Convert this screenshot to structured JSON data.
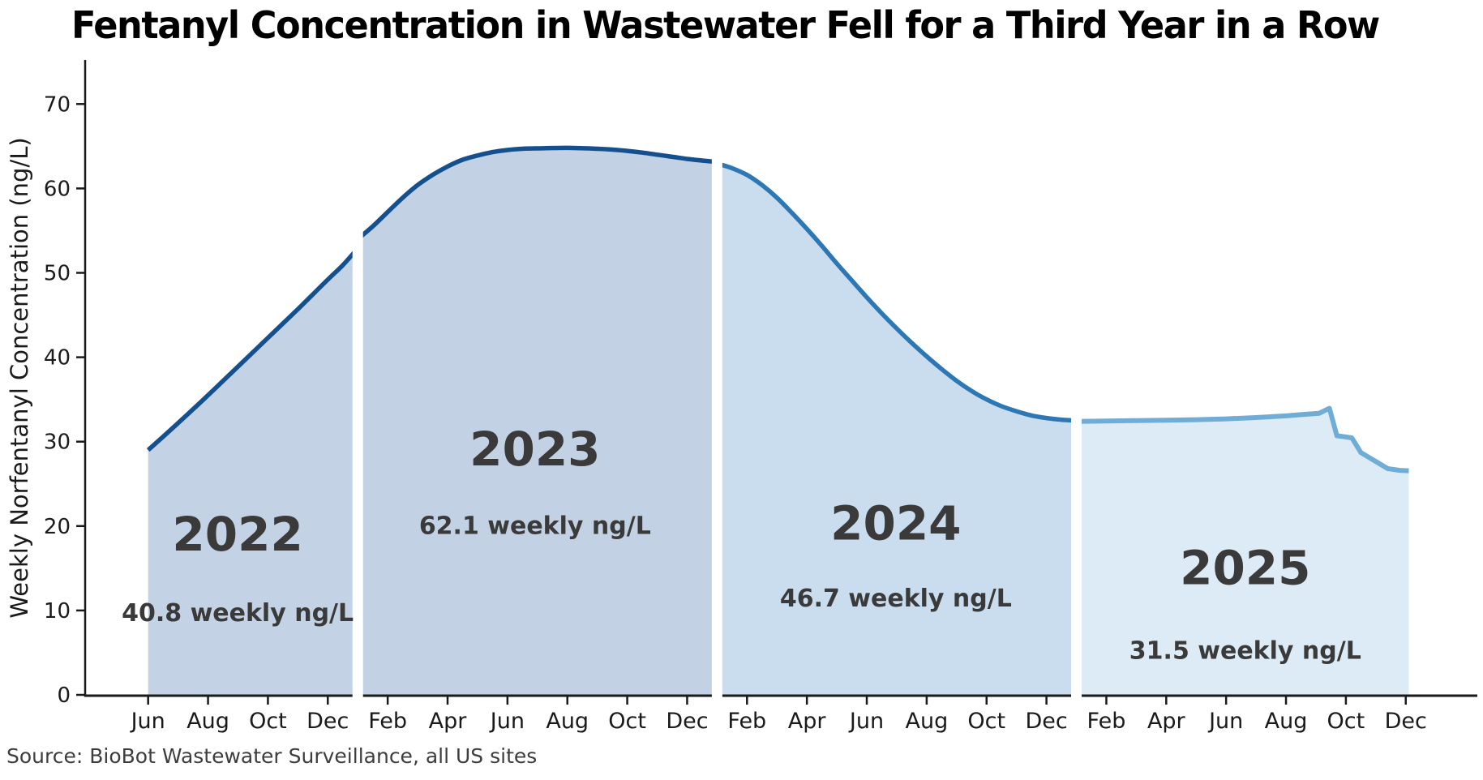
{
  "header": {
    "title": "Fentanyl Concentration in Wastewater Fell for a Third Year in a Row"
  },
  "footer": {
    "source": "Source: BioBot Wastewater Surveillance, all US sites"
  },
  "chart_data": {
    "type": "area",
    "title": "Fentanyl Concentration in Wastewater Fell for a Third Year in a Row",
    "xlabel": "",
    "ylabel": "Weekly Norfentanyl Concentration (ng/L)",
    "x_unit": "months since Jan 2022 (fractional)",
    "xlim": [
      2.9,
      49.3
    ],
    "ylim": [
      0,
      75.2
    ],
    "grid": false,
    "legend": "none",
    "axis_color": "#1a1a1a",
    "tick_color": "#1a1a1a",
    "annotation_color": "#3a3a3a",
    "y_ticks": [
      0,
      10,
      20,
      30,
      40,
      50,
      60,
      70
    ],
    "x_ticks": [
      {
        "m": 5,
        "label": "Jun"
      },
      {
        "m": 7,
        "label": "Aug"
      },
      {
        "m": 9,
        "label": "Oct"
      },
      {
        "m": 11,
        "label": "Dec"
      },
      {
        "m": 13,
        "label": "Feb"
      },
      {
        "m": 15,
        "label": "Apr"
      },
      {
        "m": 17,
        "label": "Jun"
      },
      {
        "m": 19,
        "label": "Aug"
      },
      {
        "m": 21,
        "label": "Oct"
      },
      {
        "m": 23,
        "label": "Dec"
      },
      {
        "m": 25,
        "label": "Feb"
      },
      {
        "m": 27,
        "label": "Apr"
      },
      {
        "m": 29,
        "label": "Jun"
      },
      {
        "m": 31,
        "label": "Aug"
      },
      {
        "m": 33,
        "label": "Oct"
      },
      {
        "m": 35,
        "label": "Dec"
      },
      {
        "m": 37,
        "label": "Feb"
      },
      {
        "m": 39,
        "label": "Apr"
      },
      {
        "m": 41,
        "label": "Jun"
      },
      {
        "m": 43,
        "label": "Aug"
      },
      {
        "m": 45,
        "label": "Oct"
      },
      {
        "m": 47,
        "label": "Dec"
      }
    ],
    "year_separators": [
      {
        "m": 12,
        "top_v": 55.6
      },
      {
        "m": 24,
        "top_v": 64.8
      },
      {
        "m": 36,
        "top_v": 34.2
      }
    ],
    "series": [
      {
        "name": "2022",
        "line_color": "#14508e",
        "fill_color": "#c3d2e4",
        "line_width": 5.5,
        "smooth": true,
        "annotation": {
          "year": "2022",
          "value": "40.8 weekly ng/L",
          "m": 7.99,
          "year_v": 19.1,
          "value_v": 9.8
        },
        "points": [
          [
            5.0,
            29.0
          ],
          [
            6,
            32.2
          ],
          [
            7,
            35.5
          ],
          [
            8,
            38.9
          ],
          [
            9,
            42.3
          ],
          [
            10,
            45.7
          ],
          [
            11,
            49.2
          ],
          [
            11.5,
            50.9
          ],
          [
            12,
            52.9
          ]
        ]
      },
      {
        "name": "2023",
        "line_color": "#14508e",
        "fill_color": "#c2d1e3",
        "line_width": 5.5,
        "smooth": true,
        "annotation": {
          "year": "2023",
          "value": "62.1 weekly ng/L",
          "m": 17.92,
          "year_v": 29.2,
          "value_v": 20.1
        },
        "points": [
          [
            12,
            54.0
          ],
          [
            12.5,
            55.5
          ],
          [
            13,
            57.2
          ],
          [
            13.5,
            58.9
          ],
          [
            14,
            60.4
          ],
          [
            14.5,
            61.6
          ],
          [
            15,
            62.6
          ],
          [
            15.5,
            63.4
          ],
          [
            16,
            63.9
          ],
          [
            16.5,
            64.3
          ],
          [
            17,
            64.55
          ],
          [
            17.5,
            64.7
          ],
          [
            18,
            64.75
          ],
          [
            19,
            64.8
          ],
          [
            20,
            64.7
          ],
          [
            20.5,
            64.6
          ],
          [
            21,
            64.45
          ],
          [
            21.5,
            64.25
          ],
          [
            22,
            64.0
          ],
          [
            22.5,
            63.75
          ],
          [
            23,
            63.5
          ],
          [
            23.5,
            63.3
          ],
          [
            24,
            63.15
          ]
        ]
      },
      {
        "name": "2024",
        "line_color": "#2e77b5",
        "fill_color": "#c9ddef",
        "line_width": 5.5,
        "smooth": true,
        "annotation": {
          "year": "2024",
          "value": "46.7 weekly ng/L",
          "m": 29.97,
          "year_v": 20.4,
          "value_v": 11.5
        },
        "points": [
          [
            24,
            62.95
          ],
          [
            24.5,
            62.4
          ],
          [
            25,
            61.6
          ],
          [
            25.5,
            60.4
          ],
          [
            26,
            58.9
          ],
          [
            26.5,
            57.1
          ],
          [
            27,
            55.2
          ],
          [
            27.5,
            53.2
          ],
          [
            28,
            51.1
          ],
          [
            28.5,
            49.1
          ],
          [
            29,
            47.1
          ],
          [
            29.5,
            45.2
          ],
          [
            30,
            43.4
          ],
          [
            30.5,
            41.7
          ],
          [
            31,
            40.1
          ],
          [
            31.5,
            38.6
          ],
          [
            32,
            37.2
          ],
          [
            32.5,
            36.0
          ],
          [
            33,
            35.0
          ],
          [
            33.5,
            34.2
          ],
          [
            34,
            33.6
          ],
          [
            34.5,
            33.1
          ],
          [
            35,
            32.8
          ],
          [
            35.5,
            32.6
          ],
          [
            36,
            32.5
          ]
        ]
      },
      {
        "name": "2025",
        "line_color": "#6fadd7",
        "fill_color": "#dcebf6",
        "line_width": 6,
        "smooth": false,
        "annotation": {
          "year": "2025",
          "value": "31.5 weekly ng/L",
          "m": 41.64,
          "year_v": 15.1,
          "value_v": 5.3
        },
        "points": [
          [
            36,
            32.4
          ],
          [
            37,
            32.45
          ],
          [
            38,
            32.5
          ],
          [
            39,
            32.55
          ],
          [
            40,
            32.6
          ],
          [
            41,
            32.7
          ],
          [
            42,
            32.85
          ],
          [
            43,
            33.05
          ],
          [
            43.5,
            33.2
          ],
          [
            44.1,
            33.35
          ],
          [
            44.45,
            33.95
          ],
          [
            44.7,
            30.7
          ],
          [
            45.2,
            30.45
          ],
          [
            45.5,
            28.7
          ],
          [
            46.4,
            26.8
          ],
          [
            46.8,
            26.6
          ],
          [
            47.1,
            26.55
          ]
        ]
      }
    ]
  }
}
